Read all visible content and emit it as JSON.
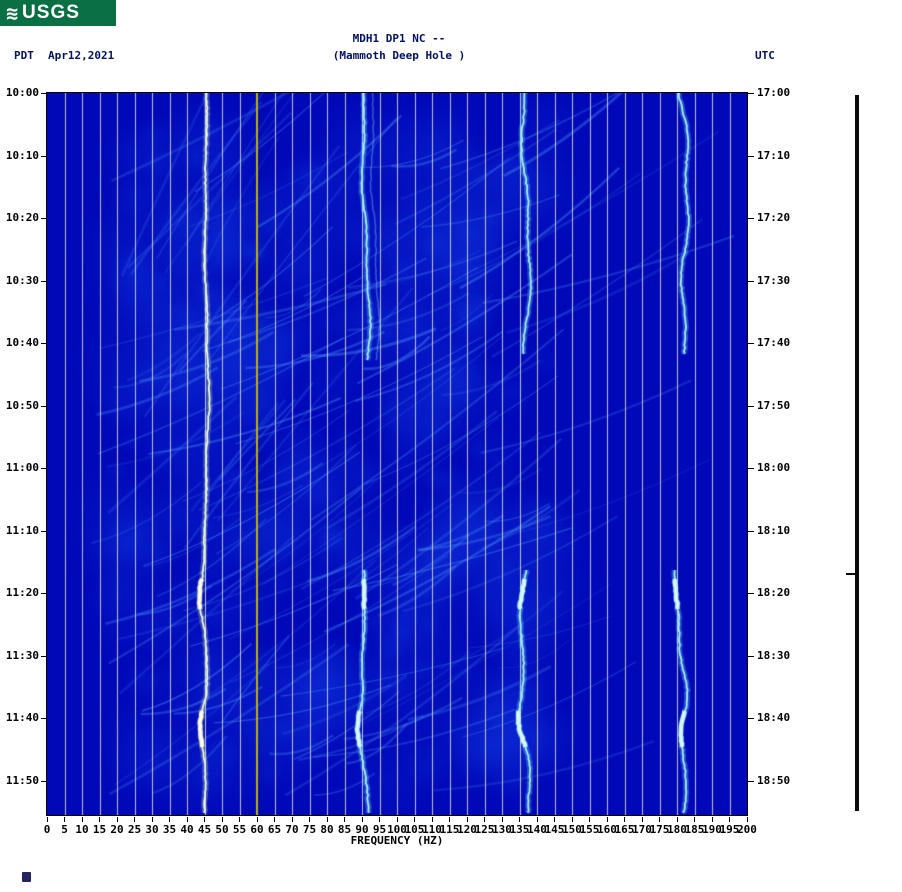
{
  "logo": {
    "text": "USGS",
    "wave_glyph": "≋",
    "bg_color": "#0a7044"
  },
  "header": {
    "timezone_left": "PDT",
    "date": "Apr12,2021",
    "station_line": "MDH1 DP1 NC --",
    "station_name": "(Mammoth Deep Hole )",
    "timezone_right": "UTC"
  },
  "chart_data": {
    "type": "heatmap",
    "title": "MDH1 DP1 NC -- (Mammoth Deep Hole )",
    "xlabel": "FREQUENCY (HZ)",
    "x_range": [
      0,
      200
    ],
    "x_tick_step": 5,
    "x_tick_labels": [
      "0",
      "5",
      "10",
      "15",
      "20",
      "25",
      "30",
      "35",
      "40",
      "45",
      "50",
      "55",
      "60",
      "65",
      "70",
      "75",
      "80",
      "85",
      "90",
      "95",
      "100",
      "105",
      "110",
      "115",
      "120",
      "125",
      "130",
      "135",
      "140",
      "145",
      "150",
      "155",
      "160",
      "165",
      "170",
      "175",
      "180",
      "185",
      "190",
      "195",
      "200"
    ],
    "left_axis": {
      "timezone": "PDT",
      "labels": [
        "10:00",
        "10:10",
        "10:20",
        "10:30",
        "10:40",
        "10:50",
        "11:00",
        "11:10",
        "11:20",
        "11:30",
        "11:40",
        "11:50"
      ]
    },
    "right_axis": {
      "timezone": "UTC",
      "labels": [
        "17:00",
        "17:10",
        "17:20",
        "17:30",
        "17:40",
        "17:50",
        "18:00",
        "18:10",
        "18:20",
        "18:30",
        "18:40",
        "18:50"
      ]
    },
    "time_step_minutes": 10,
    "features": {
      "powerline_hz": 60,
      "harmonic_bands_hz": [
        45.5,
        91,
        136.5,
        182
      ],
      "band_gap": "bands at 91/136/182 Hz fade between about 10:41 and 11:16 PDT",
      "notes": "diagonal gliding streaks visible mostly between 10 and 130 Hz; bright bursts near 11:25 and 11:45 PDT"
    },
    "colors": {
      "background": "#0008b8",
      "grid": "#e1e1e1",
      "powerline": "#b8b400",
      "trace_cyan": "#a8f2ff",
      "trace_yellow": "#eeffd8",
      "streak": "#5096ff"
    }
  }
}
